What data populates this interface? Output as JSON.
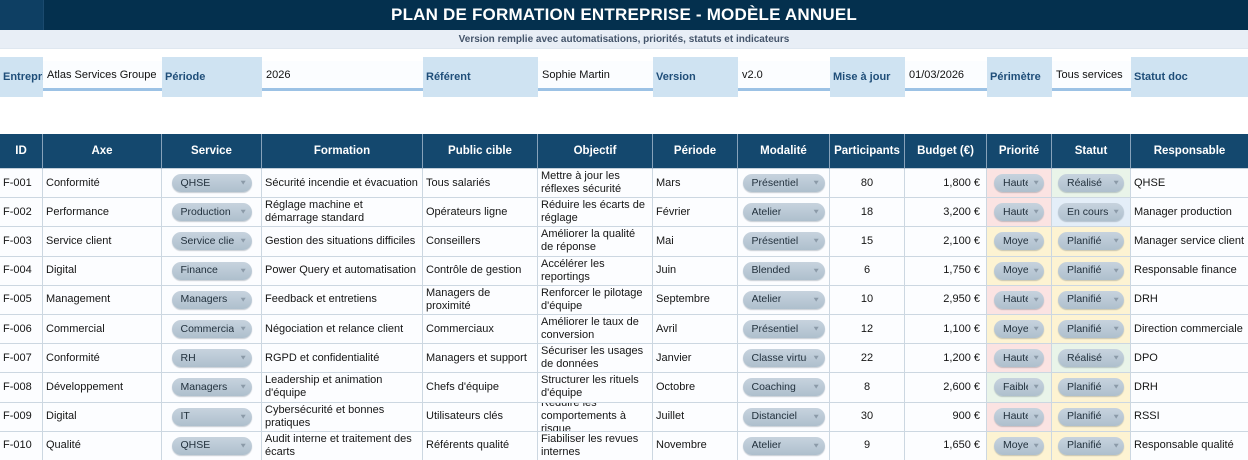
{
  "title": "PLAN DE FORMATION ENTREPRISE - MODÈLE ANNUEL",
  "subtitle": "Version remplie avec automatisations, priorités, statuts et indicateurs",
  "meta": {
    "fields": [
      {
        "label": "Entreprise",
        "value": "Atlas Services Groupe"
      },
      {
        "label": "Période",
        "value": "2026"
      },
      {
        "label": "Référent",
        "value": "Sophie Martin"
      },
      {
        "label": "Version",
        "value": "v2.0"
      },
      {
        "label": "Mise à jour",
        "value": "01/03/2026"
      },
      {
        "label": "Périmètre",
        "value": "Tous services"
      },
      {
        "label": "Statut doc"
      }
    ]
  },
  "table": {
    "columns": [
      "ID",
      "Axe",
      "Service",
      "Formation",
      "Public cible",
      "Objectif",
      "Période",
      "Modalité",
      "Participants",
      "Budget (€)",
      "Priorité",
      "Statut",
      "Responsable"
    ],
    "rows": [
      {
        "id": "F-001",
        "axe": "Conformité",
        "service": "QHSE",
        "formation": "Sécurité incendie et évacuation",
        "public": "Tous salariés",
        "objectif": "Mettre à jour les réflexes sécurité",
        "periode": "Mars",
        "modalite": "Présentiel",
        "participants": "80",
        "budget": "1,800 €",
        "priorite": "Haute",
        "statut": "Réalisé",
        "responsable": "QHSE"
      },
      {
        "id": "F-002",
        "axe": "Performance",
        "service": "Production",
        "formation": "Réglage machine et démarrage standard",
        "public": "Opérateurs ligne",
        "objectif": "Réduire les écarts de réglage",
        "periode": "Février",
        "modalite": "Atelier",
        "participants": "18",
        "budget": "3,200 €",
        "priorite": "Haute",
        "statut": "En cours",
        "responsable": "Manager production"
      },
      {
        "id": "F-003",
        "axe": "Service client",
        "service": "Service client",
        "formation": "Gestion des situations difficiles",
        "public": "Conseillers",
        "objectif": "Améliorer la qualité de réponse",
        "periode": "Mai",
        "modalite": "Présentiel",
        "participants": "15",
        "budget": "2,100 €",
        "priorite": "Moyenne",
        "statut": "Planifié",
        "responsable": "Manager service client"
      },
      {
        "id": "F-004",
        "axe": "Digital",
        "service": "Finance",
        "formation": "Power Query et automatisation",
        "public": "Contrôle de gestion",
        "objectif": "Accélérer les reportings",
        "periode": "Juin",
        "modalite": "Blended",
        "participants": "6",
        "budget": "1,750 €",
        "priorite": "Moyenne",
        "statut": "Planifié",
        "responsable": "Responsable finance"
      },
      {
        "id": "F-005",
        "axe": "Management",
        "service": "Managers",
        "formation": "Feedback et entretiens",
        "public": "Managers de proximité",
        "objectif": "Renforcer le pilotage d'équipe",
        "periode": "Septembre",
        "modalite": "Atelier",
        "participants": "10",
        "budget": "2,950 €",
        "priorite": "Haute",
        "statut": "Planifié",
        "responsable": "DRH"
      },
      {
        "id": "F-006",
        "axe": "Commercial",
        "service": "Commercial",
        "formation": "Négociation et relance client",
        "public": "Commerciaux",
        "objectif": "Améliorer le taux de conversion",
        "periode": "Avril",
        "modalite": "Présentiel",
        "participants": "12",
        "budget": "1,100 €",
        "priorite": "Moyenne",
        "statut": "Planifié",
        "responsable": "Direction commerciale"
      },
      {
        "id": "F-007",
        "axe": "Conformité",
        "service": "RH",
        "formation": "RGPD et confidentialité",
        "public": "Managers et support",
        "objectif": "Sécuriser les usages de données",
        "periode": "Janvier",
        "modalite": "Classe virtuelle",
        "participants": "22",
        "budget": "1,200 €",
        "priorite": "Haute",
        "statut": "Réalisé",
        "responsable": "DPO"
      },
      {
        "id": "F-008",
        "axe": "Développement",
        "service": "Managers",
        "formation": "Leadership et animation d'équipe",
        "public": "Chefs d'équipe",
        "objectif": "Structurer les rituels d'équipe",
        "periode": "Octobre",
        "modalite": "Coaching",
        "participants": "8",
        "budget": "2,600 €",
        "priorite": "Faible",
        "statut": "Planifié",
        "responsable": "DRH"
      },
      {
        "id": "F-009",
        "axe": "Digital",
        "service": "IT",
        "formation": "Cybersécurité et bonnes pratiques",
        "public": "Utilisateurs clés",
        "objectif": "Réduire les comportements à risque",
        "periode": "Juillet",
        "modalite": "Distanciel",
        "participants": "30",
        "budget": "900 €",
        "priorite": "Haute",
        "statut": "Planifié",
        "responsable": "RSSI"
      },
      {
        "id": "F-010",
        "axe": "Qualité",
        "service": "QHSE",
        "formation": "Audit interne et traitement des écarts",
        "public": "Référents qualité",
        "objectif": "Fiabiliser les revues internes",
        "periode": "Novembre",
        "modalite": "Atelier",
        "participants": "9",
        "budget": "1,650 €",
        "priorite": "Moyenne",
        "statut": "Planifié",
        "responsable": "Responsable qualité"
      }
    ]
  },
  "icons": {
    "dropdown_arrow": "▼"
  },
  "colors": {
    "title_bar": "#04304e",
    "corner_cell": "#0e3f63",
    "subtitle_bg": "#e8eef6",
    "meta_label_bg": "#cfe3f2",
    "meta_underline": "#9cc2e5",
    "header_bg": "#14486e",
    "pill_bg": "#b8c6d3",
    "priority_bg": {
      "Haute": "#fbe3e2",
      "Moyenne": "#fdf3d2",
      "Faible": "#e9f4e9"
    },
    "status_bg": {
      "Réalisé": "#e9f4e9",
      "En cours": "#e4eef8",
      "Planifié": "#fdf3d2"
    }
  }
}
